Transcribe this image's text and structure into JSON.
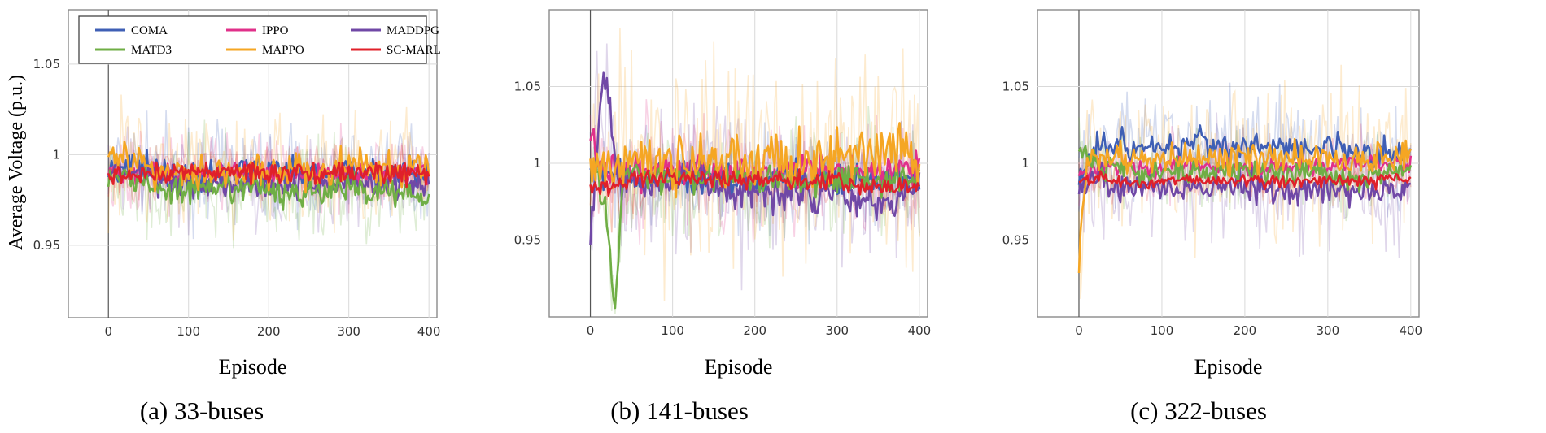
{
  "figure": {
    "ylabel": "Average Voltage (p.u.)"
  },
  "legend": [
    {
      "name": "COMA",
      "color": "#3f5fb5"
    },
    {
      "name": "IPPO",
      "color": "#e0308a"
    },
    {
      "name": "MADDPG",
      "color": "#7048a6"
    },
    {
      "name": "MATD3",
      "color": "#6fae45"
    },
    {
      "name": "MAPPO",
      "color": "#f5a623"
    },
    {
      "name": "SC-MARL",
      "color": "#e0202a"
    }
  ],
  "chart_data": [
    {
      "type": "line",
      "caption": "(a) 33-buses",
      "xlabel": "Episode",
      "ylabel": "Average Voltage (p.u.)",
      "xlim": [
        -50,
        410
      ],
      "ylim": [
        0.91,
        1.08
      ],
      "xticks": [
        "0",
        "100",
        "200",
        "300",
        "400"
      ],
      "yticks": [
        "0.95",
        "1",
        "1.05"
      ],
      "grid": true,
      "legend_placement": "top-left",
      "x": [
        0,
        25,
        50,
        75,
        100,
        125,
        150,
        175,
        200,
        225,
        250,
        275,
        300,
        325,
        350,
        375,
        400
      ],
      "series": [
        {
          "name": "COMA",
          "color": "#3f5fb5",
          "noise": 0.004,
          "shade": 0.012,
          "values": [
            0.99,
            0.995,
            0.992,
            0.99,
            0.988,
            0.99,
            0.99,
            0.992,
            0.99,
            0.99,
            0.988,
            0.99,
            0.992,
            0.99,
            0.99,
            0.992,
            0.99
          ]
        },
        {
          "name": "IPPO",
          "color": "#e0308a",
          "noise": 0.003,
          "shade": 0.01,
          "values": [
            0.99,
            0.99,
            0.99,
            0.99,
            0.99,
            0.99,
            0.99,
            0.99,
            0.99,
            0.99,
            0.99,
            0.99,
            0.99,
            0.99,
            0.99,
            0.99,
            0.99
          ]
        },
        {
          "name": "MADDPG",
          "color": "#7048a6",
          "noise": 0.004,
          "shade": 0.012,
          "values": [
            0.99,
            0.99,
            0.988,
            0.986,
            0.985,
            0.984,
            0.984,
            0.985,
            0.984,
            0.983,
            0.984,
            0.984,
            0.986,
            0.984,
            0.984,
            0.984,
            0.984
          ]
        },
        {
          "name": "MATD3",
          "color": "#6fae45",
          "noise": 0.004,
          "shade": 0.014,
          "values": [
            0.985,
            0.988,
            0.984,
            0.98,
            0.98,
            0.98,
            0.98,
            0.982,
            0.98,
            0.978,
            0.98,
            0.98,
            0.982,
            0.98,
            0.98,
            0.98,
            0.978
          ]
        },
        {
          "name": "MAPPO",
          "color": "#f5a623",
          "noise": 0.005,
          "shade": 0.016,
          "values": [
            1.0,
            0.998,
            0.993,
            0.99,
            0.99,
            0.992,
            0.99,
            0.99,
            0.99,
            0.992,
            0.99,
            0.99,
            0.995,
            0.992,
            0.99,
            0.992,
            0.992
          ]
        },
        {
          "name": "SC-MARL",
          "color": "#e0202a",
          "noise": 0.003,
          "shade": 0.008,
          "values": [
            0.988,
            0.988,
            0.99,
            0.99,
            0.99,
            0.99,
            0.992,
            0.99,
            0.99,
            0.99,
            0.99,
            0.99,
            0.99,
            0.99,
            0.99,
            0.99,
            0.988
          ]
        }
      ]
    },
    {
      "type": "line",
      "caption": "(b) 141-buses",
      "xlabel": "Episode",
      "ylabel": "",
      "xlim": [
        -50,
        410
      ],
      "ylim": [
        0.9,
        1.1
      ],
      "xticks": [
        "0",
        "100",
        "200",
        "300",
        "400"
      ],
      "yticks": [
        "0.95",
        "1",
        "1.05"
      ],
      "grid": true,
      "x": [
        0,
        10,
        20,
        30,
        40,
        50,
        75,
        100,
        125,
        150,
        175,
        200,
        225,
        250,
        275,
        300,
        325,
        350,
        375,
        400
      ],
      "series": [
        {
          "name": "COMA",
          "color": "#3f5fb5",
          "noise": 0.005,
          "shade": 0.016,
          "values": [
            0.995,
            1.0,
            0.99,
            0.99,
            0.995,
            0.99,
            0.99,
            0.99,
            0.99,
            0.99,
            0.99,
            0.99,
            0.99,
            0.99,
            0.99,
            0.99,
            0.99,
            0.99,
            0.99,
            0.99
          ]
        },
        {
          "name": "IPPO",
          "color": "#e0308a",
          "noise": 0.005,
          "shade": 0.02,
          "values": [
            1.02,
            1.0,
            0.995,
            0.995,
            0.995,
            0.995,
            0.995,
            0.995,
            0.995,
            0.995,
            0.995,
            0.995,
            0.995,
            0.995,
            0.995,
            0.995,
            0.995,
            0.995,
            0.995,
            1.0
          ]
        },
        {
          "name": "MADDPG",
          "color": "#7048a6",
          "noise": 0.006,
          "shade": 0.025,
          "values": [
            0.945,
            1.03,
            1.055,
            1.0,
            0.99,
            0.99,
            0.985,
            0.99,
            0.99,
            0.985,
            0.98,
            0.985,
            0.98,
            0.985,
            0.98,
            0.985,
            0.975,
            0.975,
            0.98,
            0.985
          ]
        },
        {
          "name": "MATD3",
          "color": "#6fae45",
          "noise": 0.005,
          "shade": 0.02,
          "values": [
            1.0,
            0.99,
            0.96,
            0.905,
            0.99,
            0.995,
            0.99,
            0.99,
            0.99,
            0.99,
            0.99,
            0.99,
            0.99,
            0.99,
            0.99,
            0.99,
            0.99,
            0.99,
            0.99,
            0.99
          ]
        },
        {
          "name": "MAPPO",
          "color": "#f5a623",
          "noise": 0.009,
          "shade": 0.035,
          "values": [
            1.0,
            1.0,
            1.0,
            0.995,
            1.005,
            1.0,
            1.0,
            1.0,
            1.002,
            1.002,
            1.0,
            1.0,
            1.002,
            1.0,
            1.005,
            1.002,
            1.005,
            1.005,
            1.01,
            1.0
          ]
        },
        {
          "name": "SC-MARL",
          "color": "#e0202a",
          "noise": 0.003,
          "shade": 0.01,
          "values": [
            0.985,
            0.985,
            0.985,
            0.985,
            0.985,
            0.99,
            0.99,
            0.99,
            0.99,
            0.99,
            0.99,
            0.99,
            0.99,
            0.99,
            0.985,
            0.99,
            0.985,
            0.985,
            0.985,
            0.985
          ]
        }
      ]
    },
    {
      "type": "line",
      "caption": "(c) 322-buses",
      "xlabel": "Episode",
      "ylabel": "",
      "xlim": [
        -50,
        410
      ],
      "ylim": [
        0.9,
        1.1
      ],
      "xticks": [
        "0",
        "100",
        "200",
        "300",
        "400"
      ],
      "yticks": [
        "0.95",
        "1",
        "1.05"
      ],
      "grid": true,
      "x": [
        0,
        10,
        20,
        30,
        40,
        50,
        75,
        100,
        125,
        150,
        175,
        200,
        225,
        250,
        275,
        300,
        325,
        350,
        375,
        400
      ],
      "series": [
        {
          "name": "COMA",
          "color": "#3f5fb5",
          "noise": 0.005,
          "shade": 0.018,
          "values": [
            0.995,
            1.0,
            1.01,
            1.012,
            1.01,
            1.012,
            1.01,
            1.012,
            1.01,
            1.015,
            1.01,
            1.01,
            1.01,
            1.01,
            1.008,
            1.01,
            1.008,
            1.005,
            1.008,
            1.005
          ]
        },
        {
          "name": "IPPO",
          "color": "#e0308a",
          "noise": 0.003,
          "shade": 0.01,
          "values": [
            0.99,
            0.995,
            0.998,
            0.998,
            0.998,
            0.998,
            0.998,
            0.998,
            0.998,
            0.998,
            0.998,
            0.998,
            0.998,
            0.998,
            0.998,
            0.998,
            1.0,
            1.002,
            1.0,
            1.0
          ]
        },
        {
          "name": "MADDPG",
          "color": "#7048a6",
          "noise": 0.005,
          "shade": 0.02,
          "values": [
            0.985,
            0.99,
            0.99,
            0.988,
            0.985,
            0.985,
            0.982,
            0.985,
            0.985,
            0.983,
            0.985,
            0.985,
            0.983,
            0.982,
            0.985,
            0.983,
            0.982,
            0.983,
            0.98,
            0.985
          ]
        },
        {
          "name": "MATD3",
          "color": "#6fae45",
          "noise": 0.004,
          "shade": 0.014,
          "values": [
            1.01,
            1.005,
            1.0,
            1.0,
            0.998,
            0.998,
            0.995,
            0.995,
            0.995,
            0.995,
            0.995,
            0.995,
            0.993,
            0.993,
            0.993,
            0.993,
            0.99,
            0.99,
            0.995,
            0.995
          ]
        },
        {
          "name": "MAPPO",
          "color": "#f5a623",
          "noise": 0.005,
          "shade": 0.025,
          "values": [
            0.94,
            1.0,
            1.005,
            1.005,
            1.003,
            1.003,
            1.002,
            1.003,
            1.003,
            1.003,
            1.002,
            1.003,
            1.003,
            1.003,
            1.003,
            1.003,
            1.003,
            1.002,
            1.003,
            1.005
          ]
        },
        {
          "name": "SC-MARL",
          "color": "#e0202a",
          "noise": 0.002,
          "shade": 0.006,
          "values": [
            0.99,
            0.99,
            0.99,
            0.99,
            0.99,
            0.988,
            0.988,
            0.988,
            0.99,
            0.988,
            0.988,
            0.99,
            0.988,
            0.988,
            0.988,
            0.988,
            0.988,
            0.988,
            0.99,
            0.99
          ]
        }
      ]
    }
  ]
}
